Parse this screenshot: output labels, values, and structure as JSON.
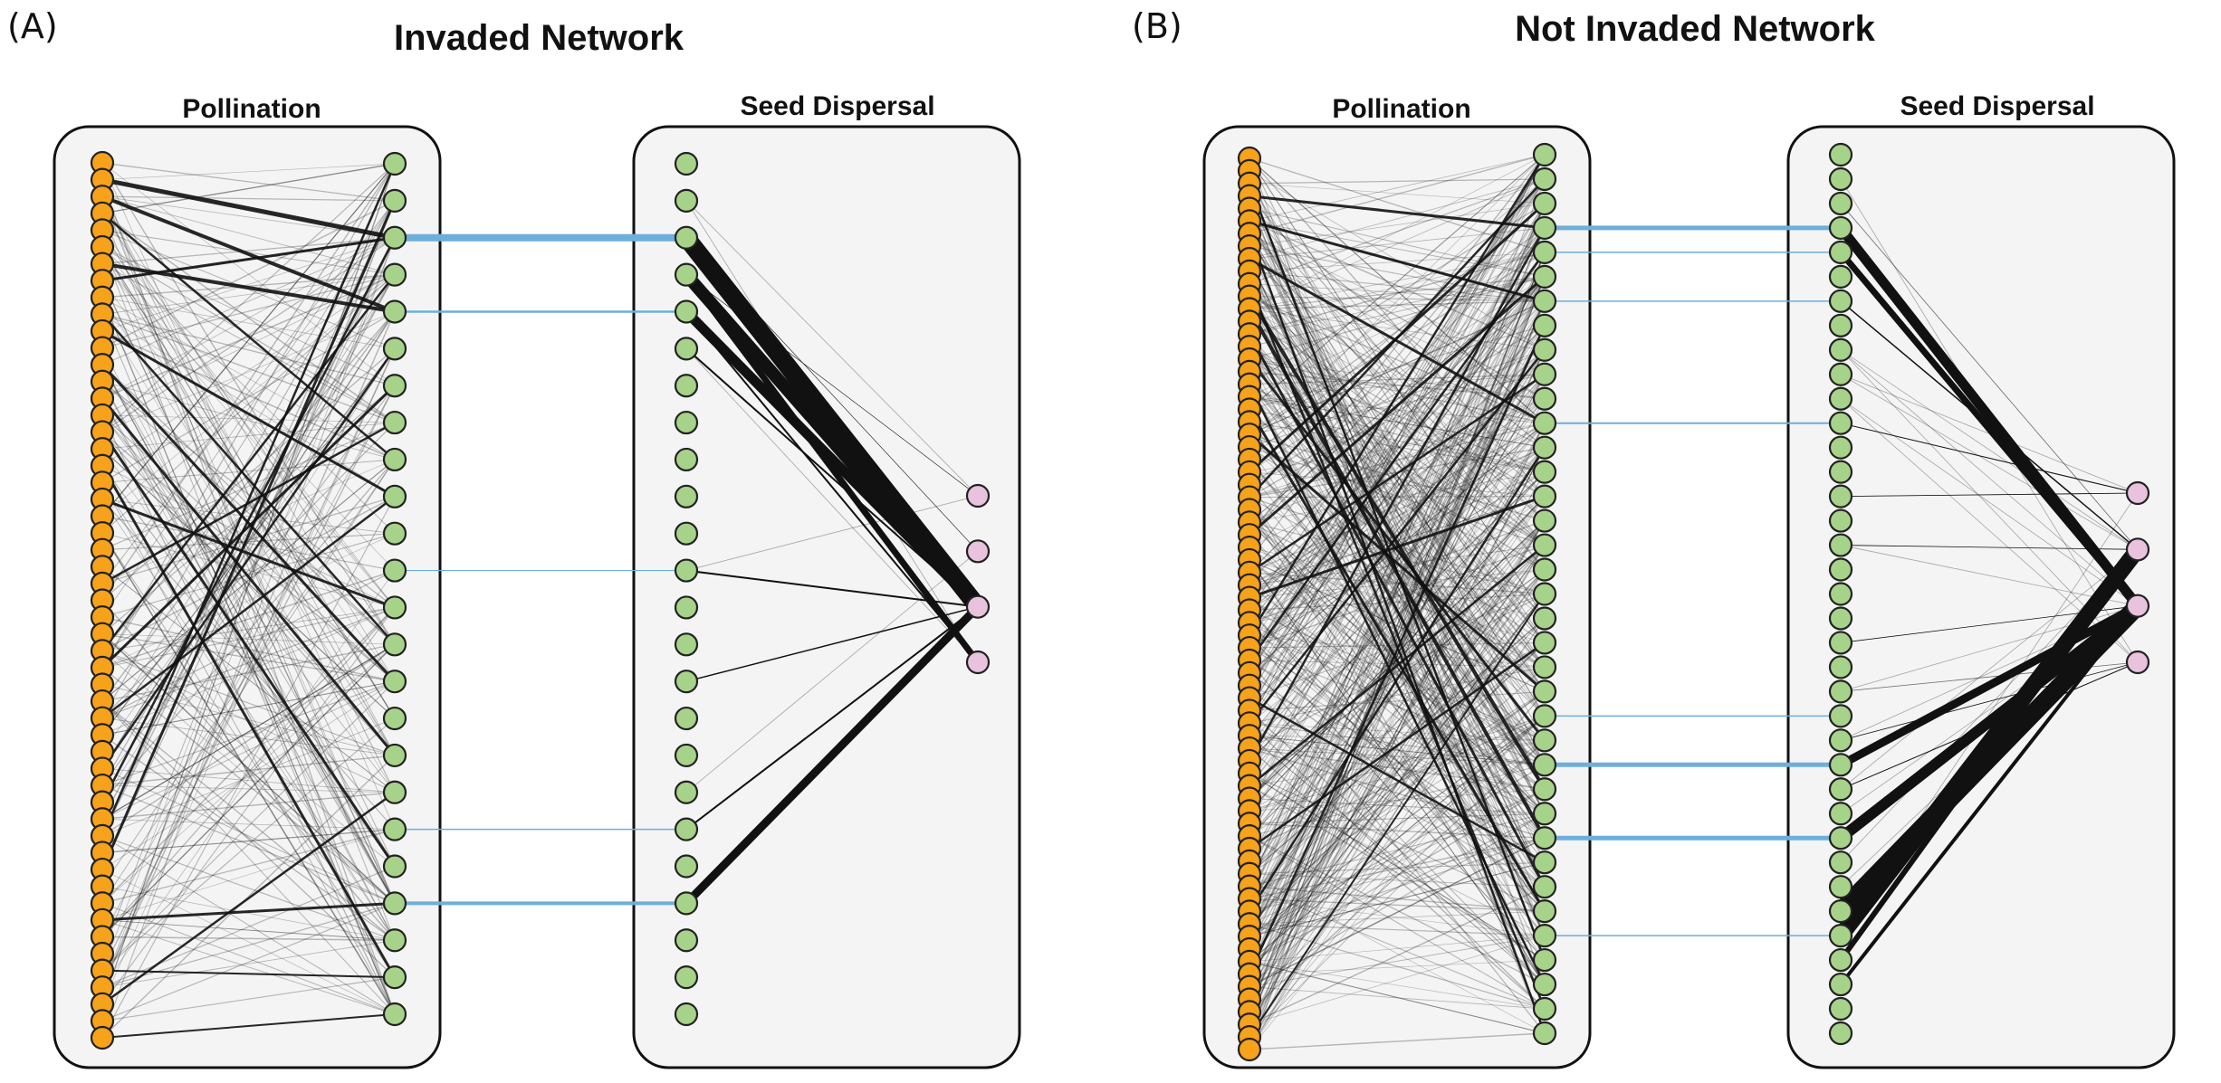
{
  "colors": {
    "plant": "#f7a21b",
    "pollinator": "#a6d389",
    "seed_plant": "#a6d389",
    "disperser": "#e9c2dd",
    "plant_link": "#111111",
    "shared_link": "#6eaedb",
    "panel_bg": "#f4f4f4"
  },
  "panels": [
    {
      "letter": "(A)",
      "title": "Invaded Network",
      "pollination_title": "Pollination",
      "seed_title": "Seed Dispersal",
      "n_left": 53,
      "n_mid": 24,
      "n_seed": 24,
      "n_disp": 4,
      "heavy_poll": [
        [
          1,
          2,
          5
        ],
        [
          2,
          4,
          4
        ],
        [
          6,
          4,
          4
        ],
        [
          7,
          2,
          3
        ],
        [
          10,
          9,
          3
        ],
        [
          12,
          14,
          3
        ],
        [
          14,
          16,
          3
        ],
        [
          16,
          19,
          3
        ],
        [
          18,
          22,
          3
        ],
        [
          20,
          12,
          3
        ],
        [
          25,
          7,
          2.5
        ],
        [
          29,
          3,
          2.5
        ],
        [
          30,
          6,
          3
        ],
        [
          33,
          9,
          2.5
        ],
        [
          38,
          2,
          2.5
        ],
        [
          40,
          0,
          2.5
        ],
        [
          42,
          1,
          3
        ],
        [
          45,
          20,
          3
        ],
        [
          50,
          17,
          2.5
        ],
        [
          52,
          23,
          2
        ],
        [
          48,
          22,
          2
        ],
        [
          3,
          8,
          2.5
        ],
        [
          9,
          13,
          2.5
        ],
        [
          36,
          5,
          2.5
        ]
      ],
      "shared": [
        [
          2,
          2,
          8
        ],
        [
          4,
          4,
          2.5
        ],
        [
          11,
          11,
          1.2
        ],
        [
          18,
          18,
          1.5
        ],
        [
          20,
          20,
          4
        ]
      ],
      "seed_links": [
        [
          2,
          2,
          20
        ],
        [
          3,
          2,
          14
        ],
        [
          4,
          2,
          11
        ],
        [
          5,
          2,
          2
        ],
        [
          11,
          2,
          2
        ],
        [
          14,
          2,
          1.5
        ],
        [
          18,
          2,
          2
        ],
        [
          20,
          2,
          9
        ],
        [
          3,
          0,
          0.6
        ],
        [
          2,
          1,
          0.6
        ],
        [
          3,
          3,
          7
        ],
        [
          4,
          3,
          2
        ]
      ]
    },
    {
      "letter": "(B)",
      "title": "Not Invaded Network",
      "pollination_title": "Pollination",
      "seed_title": "Seed Dispersal",
      "n_left": 72,
      "n_mid": 37,
      "n_seed": 37,
      "n_disp": 4,
      "heavy_poll": [
        [
          3,
          3,
          3
        ],
        [
          5,
          6,
          3
        ],
        [
          8,
          11,
          3
        ],
        [
          11,
          26,
          4
        ],
        [
          12,
          28,
          4
        ],
        [
          14,
          30,
          3
        ],
        [
          16,
          24,
          3
        ],
        [
          20,
          31,
          3
        ],
        [
          25,
          2,
          3
        ],
        [
          30,
          5,
          3
        ],
        [
          33,
          9,
          2.5
        ],
        [
          35,
          14,
          3
        ],
        [
          40,
          4,
          2.5
        ],
        [
          45,
          8,
          2.5
        ],
        [
          50,
          16,
          2.5
        ],
        [
          55,
          20,
          2.5
        ],
        [
          60,
          12,
          2.5
        ],
        [
          2,
          33,
          2.5
        ],
        [
          6,
          36,
          2.5
        ],
        [
          18,
          34,
          2.5
        ],
        [
          27,
          1,
          2.5
        ],
        [
          38,
          0,
          2.5
        ],
        [
          48,
          3,
          2.5
        ],
        [
          65,
          7,
          2.5
        ],
        [
          70,
          18,
          2
        ],
        [
          22,
          22,
          3
        ],
        [
          10,
          35,
          2.5
        ],
        [
          43,
          29,
          2.5
        ]
      ],
      "shared": [
        [
          3,
          3,
          5
        ],
        [
          4,
          4,
          1.5
        ],
        [
          6,
          6,
          1.5
        ],
        [
          11,
          11,
          2
        ],
        [
          23,
          23,
          1.5
        ],
        [
          25,
          25,
          5
        ],
        [
          28,
          28,
          5
        ],
        [
          32,
          32,
          1.5
        ]
      ],
      "seed_links": [
        [
          3,
          2,
          11
        ],
        [
          4,
          2,
          7
        ],
        [
          6,
          1,
          1.5
        ],
        [
          11,
          0,
          1
        ],
        [
          25,
          2,
          9
        ],
        [
          28,
          2,
          12
        ],
        [
          31,
          2,
          20
        ],
        [
          32,
          1,
          18
        ],
        [
          33,
          1,
          6
        ],
        [
          34,
          2,
          4
        ],
        [
          26,
          3,
          1
        ],
        [
          16,
          1,
          0.8
        ],
        [
          20,
          2,
          0.8
        ],
        [
          24,
          3,
          0.8
        ],
        [
          14,
          0,
          0.8
        ]
      ]
    }
  ]
}
